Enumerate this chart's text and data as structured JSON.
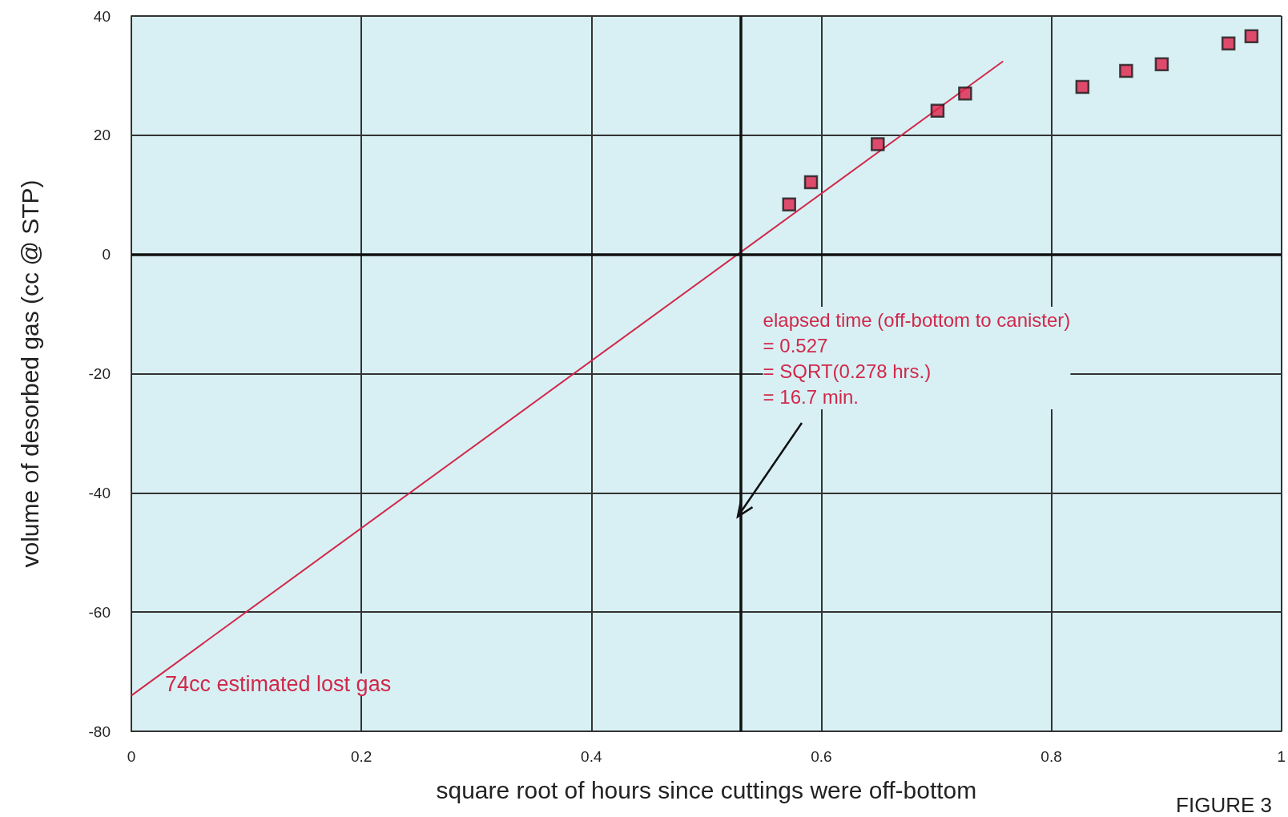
{
  "chart_data": {
    "type": "scatter",
    "xlabel": "square root of hours since cuttings were off-bottom",
    "ylabel": "volume of desorbed gas (cc @ STP)",
    "series": [
      {
        "color": "#e0204a",
        "marker": "square",
        "x": [
          0.572,
          0.591,
          0.649,
          0.701,
          0.725,
          0.827,
          0.865,
          0.896,
          0.954,
          0.974
        ],
        "values": [
          8.4,
          12.1,
          18.5,
          24.1,
          27.0,
          28.1,
          30.8,
          31.9,
          35.4,
          36.6
        ]
      },
      {
        "type": "line",
        "color": "#d0284a",
        "marker": "none",
        "line_style": "solid",
        "x": [
          0,
          0.758
        ],
        "values": [
          -74,
          32.4
        ]
      }
    ],
    "xlim": [
      0,
      1
    ],
    "xticks": [
      0,
      0.2,
      0.4,
      0.6,
      0.8,
      1
    ],
    "ylim": [
      -80,
      40
    ],
    "yticks": [
      -80,
      -60,
      -40,
      -20,
      0,
      20,
      40
    ],
    "grid": true,
    "ref_lines": [
      {
        "axis": "x",
        "value": 0.527,
        "color": "#111111"
      },
      {
        "axis": "y",
        "value": 0,
        "color": "#111111"
      }
    ],
    "annotations": [
      {
        "text": "elapsed time (off-bottom to canister)\n= 0.527\n= SQRT(0.278 hrs.)\n= 16.7 min.",
        "x": 0.527,
        "y": -44
      },
      {
        "text": "74cc estimated lost gas",
        "x": 0,
        "y": -74
      },
      "FIGURE 3"
    ]
  }
}
